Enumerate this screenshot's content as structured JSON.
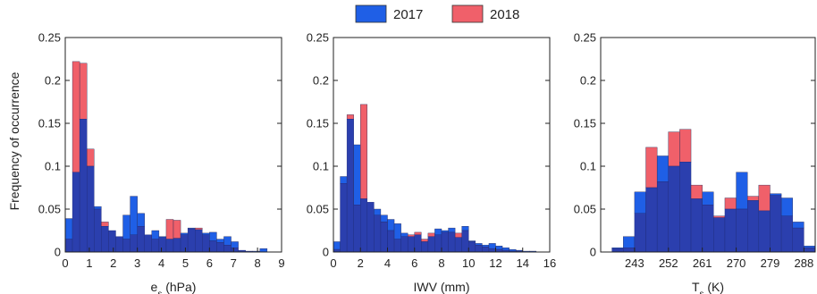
{
  "legend": [
    {
      "label": "2017",
      "color": "#1f5fe6"
    },
    {
      "label": "2018",
      "color": "#f0606a"
    }
  ],
  "colors": {
    "bar_2017": "#1f5fe6",
    "bar_2018": "#f0606a",
    "overlap": "#2b3fae"
  },
  "ylabel": "Frequency of occurrence",
  "chart_data": [
    {
      "type": "bar",
      "xlabel_main": "e",
      "xlabel_sub": "s",
      "xlabel_unit": " (hPa)",
      "xlim": [
        0,
        9
      ],
      "ylim": [
        0,
        0.25
      ],
      "xticks": [
        0,
        1,
        2,
        3,
        4,
        5,
        6,
        7,
        8,
        9
      ],
      "yticks": [
        0,
        0.05,
        0.1,
        0.15,
        0.2,
        0.25
      ],
      "ytick_labels": [
        "0",
        "0.05",
        "0.1",
        "0.15",
        "0.2",
        "0.25"
      ],
      "bin_start": 0,
      "bin_width": 0.3,
      "series": [
        {
          "name": "2017",
          "values": [
            0.039,
            0.093,
            0.155,
            0.1,
            0.053,
            0.03,
            0.025,
            0.018,
            0.043,
            0.065,
            0.045,
            0.02,
            0.025,
            0.018,
            0.015,
            0.016,
            0.022,
            0.028,
            0.026,
            0.022,
            0.023,
            0.015,
            0.018,
            0.012,
            0.002,
            0.001,
            0.001,
            0.004,
            0.0,
            0.0
          ]
        },
        {
          "name": "2018",
          "values": [
            0.015,
            0.222,
            0.22,
            0.12,
            0.05,
            0.035,
            0.025,
            0.018,
            0.015,
            0.02,
            0.03,
            0.02,
            0.015,
            0.017,
            0.038,
            0.037,
            0.02,
            0.027,
            0.028,
            0.02,
            0.013,
            0.011,
            0.008,
            0.005,
            0.002,
            0.001,
            0.0,
            0.0,
            0.0,
            0.0
          ]
        }
      ]
    },
    {
      "type": "bar",
      "xlabel_main": "IWV (mm)",
      "xlabel_sub": "",
      "xlabel_unit": "",
      "xlim": [
        0,
        16
      ],
      "ylim": [
        0,
        0.25
      ],
      "xticks": [
        0,
        2,
        4,
        6,
        8,
        10,
        12,
        14,
        16
      ],
      "yticks": [
        0,
        0.05,
        0.1,
        0.15,
        0.2,
        0.25
      ],
      "ytick_labels": [
        "0",
        "0.05",
        "0.1",
        "0.15",
        "0.2",
        "0.25"
      ],
      "bin_start": 0,
      "bin_width": 0.5,
      "series": [
        {
          "name": "2017",
          "values": [
            0.012,
            0.088,
            0.155,
            0.125,
            0.062,
            0.058,
            0.05,
            0.043,
            0.038,
            0.033,
            0.022,
            0.018,
            0.02,
            0.012,
            0.018,
            0.027,
            0.025,
            0.028,
            0.017,
            0.03,
            0.013,
            0.01,
            0.008,
            0.01,
            0.007,
            0.005,
            0.003,
            0.002,
            0.001,
            0.001,
            0.0,
            0.0
          ]
        },
        {
          "name": "2018",
          "values": [
            0.003,
            0.08,
            0.16,
            0.055,
            0.172,
            0.058,
            0.043,
            0.035,
            0.025,
            0.015,
            0.018,
            0.02,
            0.023,
            0.015,
            0.022,
            0.02,
            0.023,
            0.023,
            0.022,
            0.025,
            0.012,
            0.008,
            0.006,
            0.004,
            0.003,
            0.002,
            0.001,
            0.001,
            0.0,
            0.0,
            0.0,
            0.0
          ]
        }
      ]
    },
    {
      "type": "bar",
      "xlabel_main": "T",
      "xlabel_sub": "s",
      "xlabel_unit": " (K)",
      "xlim": [
        234,
        291
      ],
      "ylim": [
        0,
        0.25
      ],
      "xticks": [
        243,
        252,
        261,
        270,
        279,
        288
      ],
      "yticks": [
        0,
        0.05,
        0.1,
        0.15,
        0.2,
        0.25
      ],
      "ytick_labels": [
        "0",
        "0.05",
        "0.1",
        "0.15",
        "0.2",
        "0.25"
      ],
      "bin_start": 234,
      "bin_width": 3,
      "series": [
        {
          "name": "2017",
          "values": [
            0.0,
            0.005,
            0.018,
            0.07,
            0.075,
            0.112,
            0.1,
            0.105,
            0.062,
            0.07,
            0.04,
            0.05,
            0.093,
            0.06,
            0.048,
            0.068,
            0.063,
            0.035,
            0.007
          ]
        },
        {
          "name": "2018",
          "values": [
            0.0,
            0.004,
            0.005,
            0.045,
            0.122,
            0.082,
            0.14,
            0.143,
            0.078,
            0.055,
            0.042,
            0.063,
            0.05,
            0.065,
            0.078,
            0.066,
            0.042,
            0.028,
            0.005
          ]
        }
      ]
    }
  ]
}
